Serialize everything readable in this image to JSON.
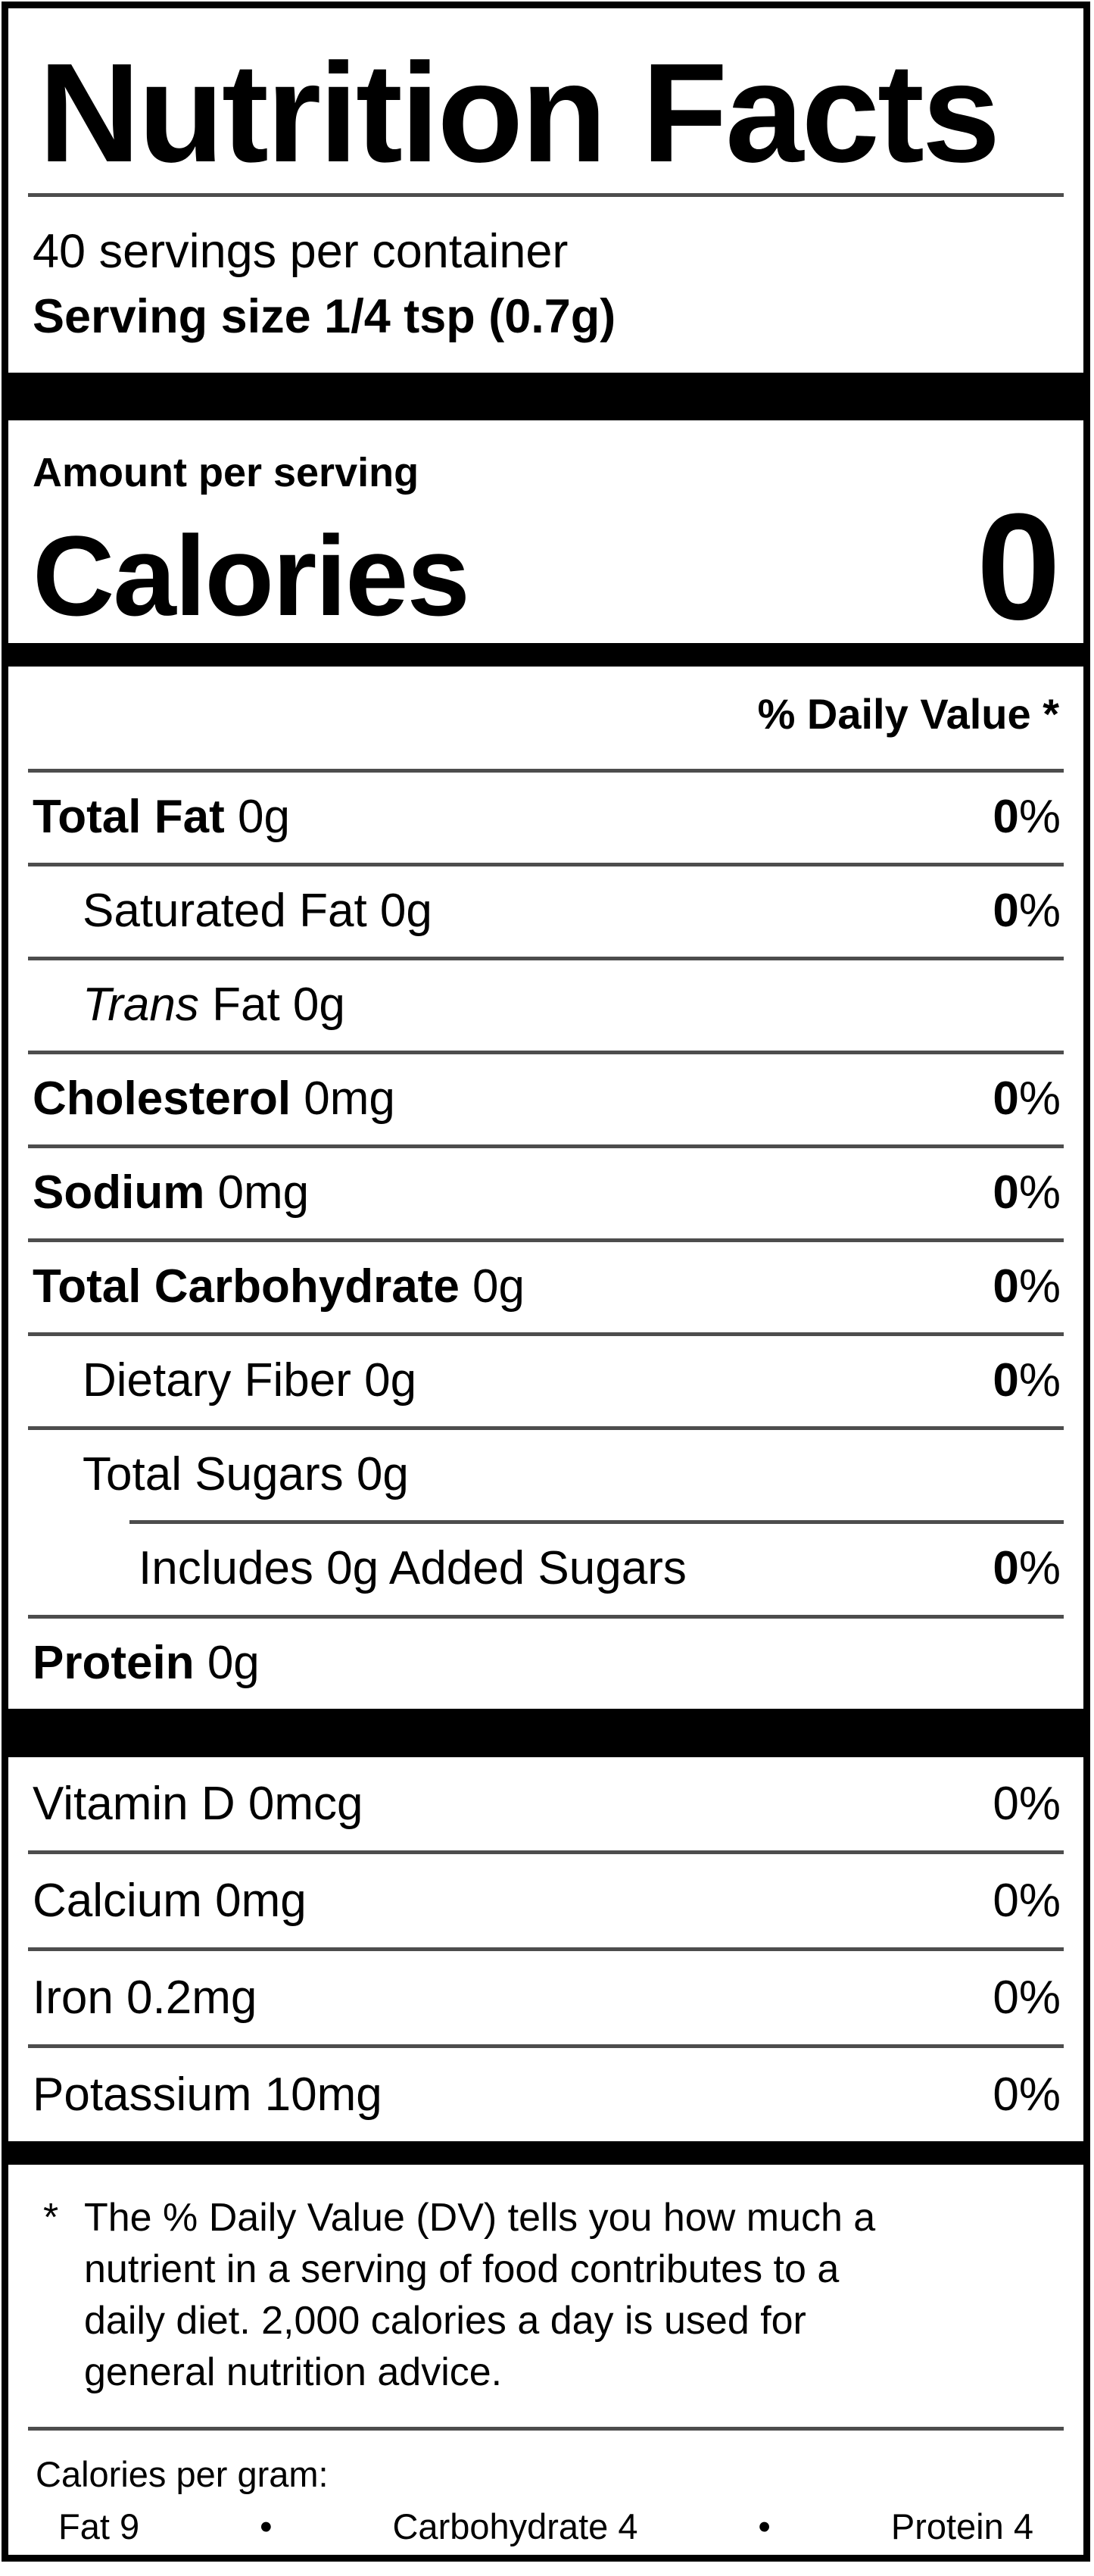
{
  "nutrition_label": {
    "title": "Nutrition Facts",
    "servings_per_container": "40 servings per container",
    "serving_size": "Serving size 1/4 tsp (0.7g)",
    "amount_per_serving_label": "Amount per serving",
    "calories_label": "Calories",
    "calories_value": "0",
    "daily_value_header": "% Daily Value *",
    "nutrient_rows": [
      {
        "name_bold": "Total Fat",
        "name_rest": " 0g",
        "dv": "0",
        "pct": "%"
      },
      {
        "name_rest": "Saturated Fat 0g",
        "dv": "0",
        "pct": "%"
      },
      {
        "name_italic": "Trans",
        "name_rest": " Fat 0g"
      },
      {
        "name_bold": "Cholesterol",
        "name_rest": " 0mg",
        "dv": "0",
        "pct": "%"
      },
      {
        "name_bold": "Sodium",
        "name_rest": " 0mg",
        "dv": "0",
        "pct": "%"
      },
      {
        "name_bold": "Total Carbohydrate",
        "name_rest": " 0g",
        "dv": "0",
        "pct": "%"
      },
      {
        "name_rest": "Dietary Fiber 0g",
        "dv": "0",
        "pct": "%"
      },
      {
        "name_rest": "Total Sugars 0g"
      },
      {
        "name_rest": "Includes 0g Added Sugars",
        "dv": "0",
        "pct": "%"
      },
      {
        "name_bold": "Protein",
        "name_rest": " 0g"
      }
    ],
    "vitamin_rows": [
      {
        "name": "Vitamin D 0mcg",
        "dv": "0",
        "pct": "%"
      },
      {
        "name": "Calcium 0mg",
        "dv": "0",
        "pct": "%"
      },
      {
        "name": "Iron 0.2mg",
        "dv": "0",
        "pct": "%"
      },
      {
        "name": "Potassium 10mg",
        "dv": "0",
        "pct": "%"
      }
    ],
    "footnote_marker": "*",
    "footnote_lines": [
      "The % Daily Value (DV) tells you how much a",
      "nutrient in a serving of food contributes to a",
      "daily diet. 2,000 calories a day is used for",
      "general nutrition advice."
    ],
    "calories_per_gram": {
      "label": "Calories per gram:",
      "bullet": "•",
      "items": [
        "Fat 9",
        "Carbohydrate 4",
        "Protein 4"
      ]
    },
    "colors": {
      "ink": "#000000",
      "paper": "#ffffff",
      "rule_gray": "#4d4d4d"
    }
  }
}
